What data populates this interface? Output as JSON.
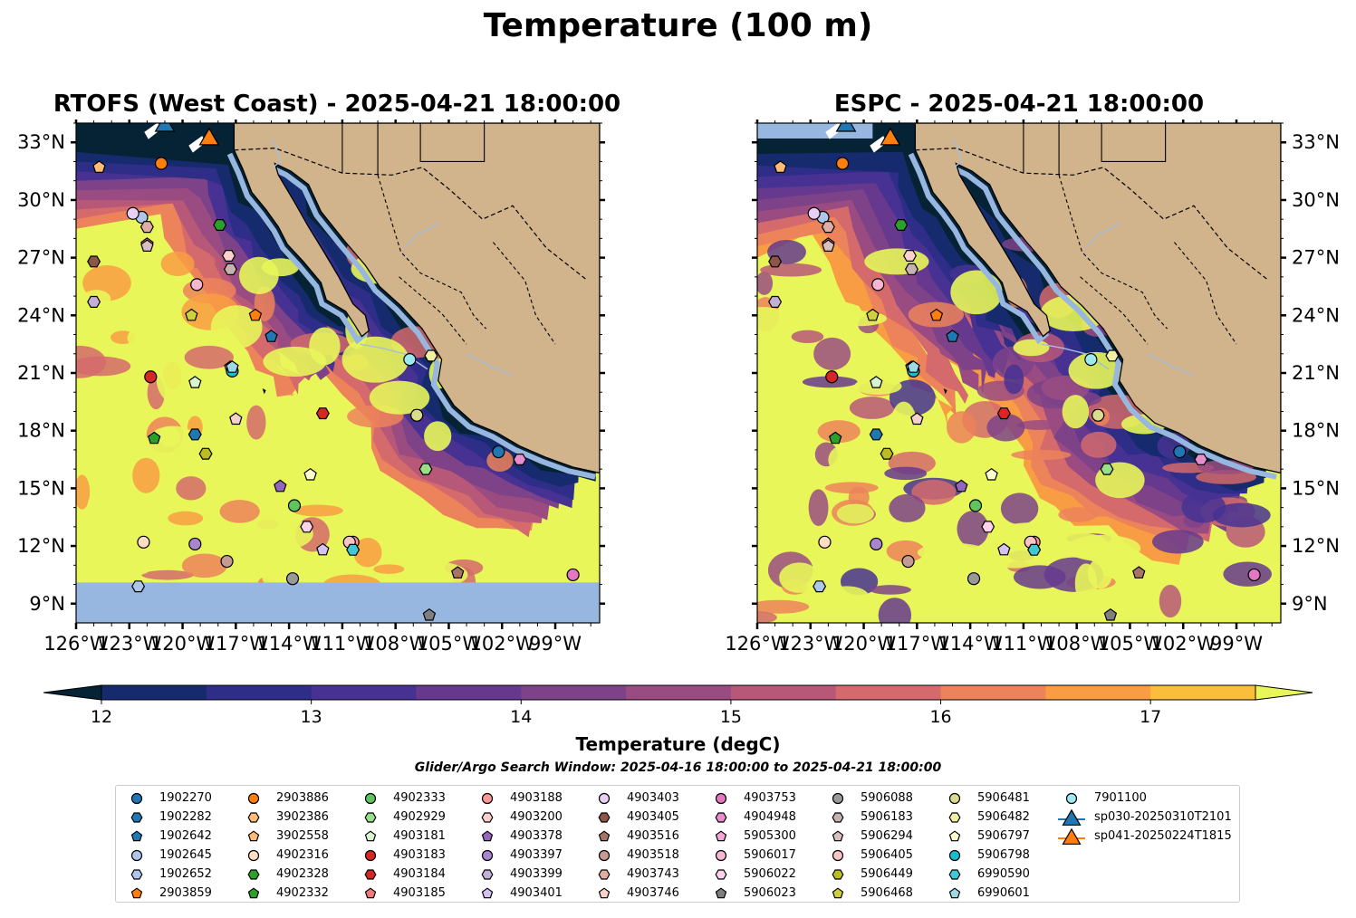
{
  "suptitle": "Temperature (100 m)",
  "panels": [
    {
      "title": "RTOFS (West Coast) - 2025-04-21 18:00:00",
      "model": "RTOFS",
      "ticks_lat_side": "left"
    },
    {
      "title": "ESPC - 2025-04-21 18:00:00",
      "model": "ESPC",
      "ticks_lat_side": "right"
    }
  ],
  "chart_data": {
    "type": "heatmap",
    "map_extent": {
      "lon": [
        -126,
        -96.5
      ],
      "lat": [
        8,
        34
      ]
    },
    "lon_ticks": [
      "126°W",
      "123°W",
      "120°W",
      "117°W",
      "114°W",
      "111°W",
      "108°W",
      "105°W",
      "102°W",
      "99°W"
    ],
    "lat_ticks": [
      "33°N",
      "30°N",
      "27°N",
      "24°N",
      "21°N",
      "18°N",
      "15°N",
      "12°N",
      "9°N"
    ],
    "colorbar": {
      "label": "Temperature (degC)",
      "vmin": 12,
      "vmax": 17.5,
      "step": 0.5,
      "ticks": [
        "12",
        "13",
        "14",
        "15",
        "16",
        "17"
      ],
      "extend": "both",
      "colors": [
        "#062235",
        "#162b6e",
        "#2e2d88",
        "#473293",
        "#66398f",
        "#7e4289",
        "#9a4c82",
        "#b85879",
        "#d46a6c",
        "#ec835a",
        "#f99d44",
        "#fbbd3c",
        "#e8f65a"
      ]
    },
    "land_color": "#d2b48c",
    "ocean_nodata_color": "#98b7e0",
    "platform_positions": {
      "1902270": [
        -102.2,
        16.9
      ],
      "1902282": [
        -119.3,
        17.8
      ],
      "1902642": [
        -115.0,
        22.9
      ],
      "1902645": [
        -122.3,
        29.1
      ],
      "1902652": [
        -122.5,
        9.9
      ],
      "2903859": [
        -115.9,
        24.0
      ],
      "2903886": [
        -121.2,
        31.9
      ],
      "3902386": [
        -106.8,
        18.8
      ],
      "3902558": [
        -124.7,
        31.7
      ],
      "4902316": [
        -122.2,
        12.2
      ],
      "4902328": [
        -117.9,
        28.7
      ],
      "4902332": [
        -121.6,
        17.6
      ],
      "4902333": [
        -113.7,
        14.1
      ],
      "4902929": [
        -106.3,
        16.0
      ],
      "4903181": [
        -119.3,
        20.5
      ],
      "4903183": [
        -121.8,
        20.8
      ],
      "4903184": [
        -112.1,
        18.9
      ],
      "4903185": [
        -122.0,
        27.7
      ],
      "4903188": [
        -110.4,
        12.2
      ],
      "4903200": [
        -117.4,
        27.1
      ],
      "4903378": [
        -114.5,
        15.1
      ],
      "4903397": [
        -119.3,
        12.1
      ],
      "4903399": [
        -125.0,
        24.7
      ],
      "4903401": [
        -112.1,
        11.8
      ],
      "4903403": [
        -122.8,
        29.3
      ],
      "4903405": [
        -125.0,
        26.8
      ],
      "4903516": [
        -104.5,
        10.6
      ],
      "4903518": [
        -117.5,
        11.2
      ],
      "4903743": [
        -122.0,
        28.6
      ],
      "4903746": [
        -117.0,
        18.6
      ],
      "4903753": [
        -98.0,
        10.5
      ],
      "4904948": [
        -101.0,
        16.5
      ],
      "5905300": [
        -117.3,
        21.3
      ],
      "5906017": [
        -119.2,
        25.6
      ],
      "5906022": [
        -113.0,
        13.0
      ],
      "5906023": [
        -106.1,
        8.4
      ],
      "5906088": [
        -113.8,
        10.3
      ],
      "5906183": [
        -117.3,
        26.4
      ],
      "5906294": [
        -122.0,
        27.6
      ],
      "5906405": [
        -110.6,
        12.2
      ],
      "5906449": [
        -118.7,
        16.8
      ],
      "5906468": [
        -119.5,
        24.0
      ],
      "5906481": [
        -106.8,
        18.8
      ],
      "5906482": [
        -106.0,
        21.9
      ],
      "5906797": [
        -112.8,
        15.7
      ],
      "5906798": [
        -117.2,
        21.1
      ],
      "6990590": [
        -110.4,
        11.8
      ],
      "6990601": [
        -117.2,
        21.3
      ],
      "7901100": [
        -107.2,
        21.7
      ]
    },
    "gliders": {
      "sp030-20250310T2101": [
        -121.0,
        34.0
      ],
      "sp041-20250224T1815": [
        -118.5,
        33.3
      ]
    }
  },
  "colorbar_label": "Temperature (degC)",
  "search_window": "Glider/Argo Search Window: 2025-04-16 18:00:00 to 2025-04-21 18:00:00",
  "legend": [
    {
      "label": "1902270",
      "marker": "circle",
      "color": "#1f77b4"
    },
    {
      "label": "1902282",
      "marker": "hexagon",
      "color": "#1f77b4"
    },
    {
      "label": "1902642",
      "marker": "pentagon",
      "color": "#1f77b4"
    },
    {
      "label": "1902645",
      "marker": "circle",
      "color": "#aec7e8"
    },
    {
      "label": "1902652",
      "marker": "hexagon",
      "color": "#aec7e8"
    },
    {
      "label": "2903859",
      "marker": "pentagon",
      "color": "#ff7f0e"
    },
    {
      "label": "2903886",
      "marker": "circle",
      "color": "#ff7f0e"
    },
    {
      "label": "3902386",
      "marker": "hexagon",
      "color": "#ffbb78"
    },
    {
      "label": "3902558",
      "marker": "pentagon",
      "color": "#ffbb78"
    },
    {
      "label": "4902316",
      "marker": "circle",
      "color": "#ffdfc4"
    },
    {
      "label": "4902328",
      "marker": "hexagon",
      "color": "#2ca02c"
    },
    {
      "label": "4902332",
      "marker": "pentagon",
      "color": "#2ca02c"
    },
    {
      "label": "4902333",
      "marker": "circle",
      "color": "#5fc35f"
    },
    {
      "label": "4902929",
      "marker": "hexagon",
      "color": "#98df8a"
    },
    {
      "label": "4903181",
      "marker": "pentagon",
      "color": "#d9f5cf"
    },
    {
      "label": "4903183",
      "marker": "circle",
      "color": "#d62728"
    },
    {
      "label": "4903184",
      "marker": "hexagon",
      "color": "#d62728"
    },
    {
      "label": "4903185",
      "marker": "pentagon",
      "color": "#f07a7a"
    },
    {
      "label": "4903188",
      "marker": "circle",
      "color": "#ff9896"
    },
    {
      "label": "4903200",
      "marker": "hexagon",
      "color": "#ffd0d0"
    },
    {
      "label": "4903378",
      "marker": "pentagon",
      "color": "#9467bd"
    },
    {
      "label": "4903397",
      "marker": "circle",
      "color": "#a985cf"
    },
    {
      "label": "4903399",
      "marker": "hexagon",
      "color": "#c5b0d5"
    },
    {
      "label": "4903401",
      "marker": "pentagon",
      "color": "#d5c2f0"
    },
    {
      "label": "4903403",
      "marker": "circle",
      "color": "#e8d0f5"
    },
    {
      "label": "4903405",
      "marker": "hexagon",
      "color": "#8c564b"
    },
    {
      "label": "4903516",
      "marker": "pentagon",
      "color": "#a67565"
    },
    {
      "label": "4903518",
      "marker": "circle",
      "color": "#c49c94"
    },
    {
      "label": "4903743",
      "marker": "hexagon",
      "color": "#e0ada2"
    },
    {
      "label": "4903746",
      "marker": "pentagon",
      "color": "#f6d2c8"
    },
    {
      "label": "4903753",
      "marker": "circle",
      "color": "#e377c2"
    },
    {
      "label": "4904948",
      "marker": "hexagon",
      "color": "#e88dcd"
    },
    {
      "label": "5905300",
      "marker": "pentagon",
      "color": "#f7a6d8"
    },
    {
      "label": "5906017",
      "marker": "circle",
      "color": "#f7b6d2"
    },
    {
      "label": "5906022",
      "marker": "hexagon",
      "color": "#fbd3ea"
    },
    {
      "label": "5906023",
      "marker": "pentagon",
      "color": "#7f7f7f"
    },
    {
      "label": "5906088",
      "marker": "circle",
      "color": "#999999"
    },
    {
      "label": "5906183",
      "marker": "hexagon",
      "color": "#c7b2b2"
    },
    {
      "label": "5906294",
      "marker": "pentagon",
      "color": "#d9c0bd"
    },
    {
      "label": "5906405",
      "marker": "circle",
      "color": "#f9c4c4"
    },
    {
      "label": "5906449",
      "marker": "hexagon",
      "color": "#bcbd22"
    },
    {
      "label": "5906468",
      "marker": "pentagon",
      "color": "#cfd040"
    },
    {
      "label": "5906481",
      "marker": "circle",
      "color": "#dbdb8d"
    },
    {
      "label": "5906482",
      "marker": "hexagon",
      "color": "#f0f0a5"
    },
    {
      "label": "5906797",
      "marker": "pentagon",
      "color": "#fdfdd0"
    },
    {
      "label": "5906798",
      "marker": "circle",
      "color": "#17becf"
    },
    {
      "label": "6990590",
      "marker": "hexagon",
      "color": "#3fc8d8"
    },
    {
      "label": "6990601",
      "marker": "pentagon",
      "color": "#9edae5"
    },
    {
      "label": "7901100",
      "marker": "circle",
      "color": "#9ee8f2"
    },
    {
      "label": "sp030-20250310T2101",
      "marker": "triangle",
      "color": "#1f77b4"
    },
    {
      "label": "sp041-20250224T1815",
      "marker": "triangle",
      "color": "#ff7f0e"
    }
  ]
}
